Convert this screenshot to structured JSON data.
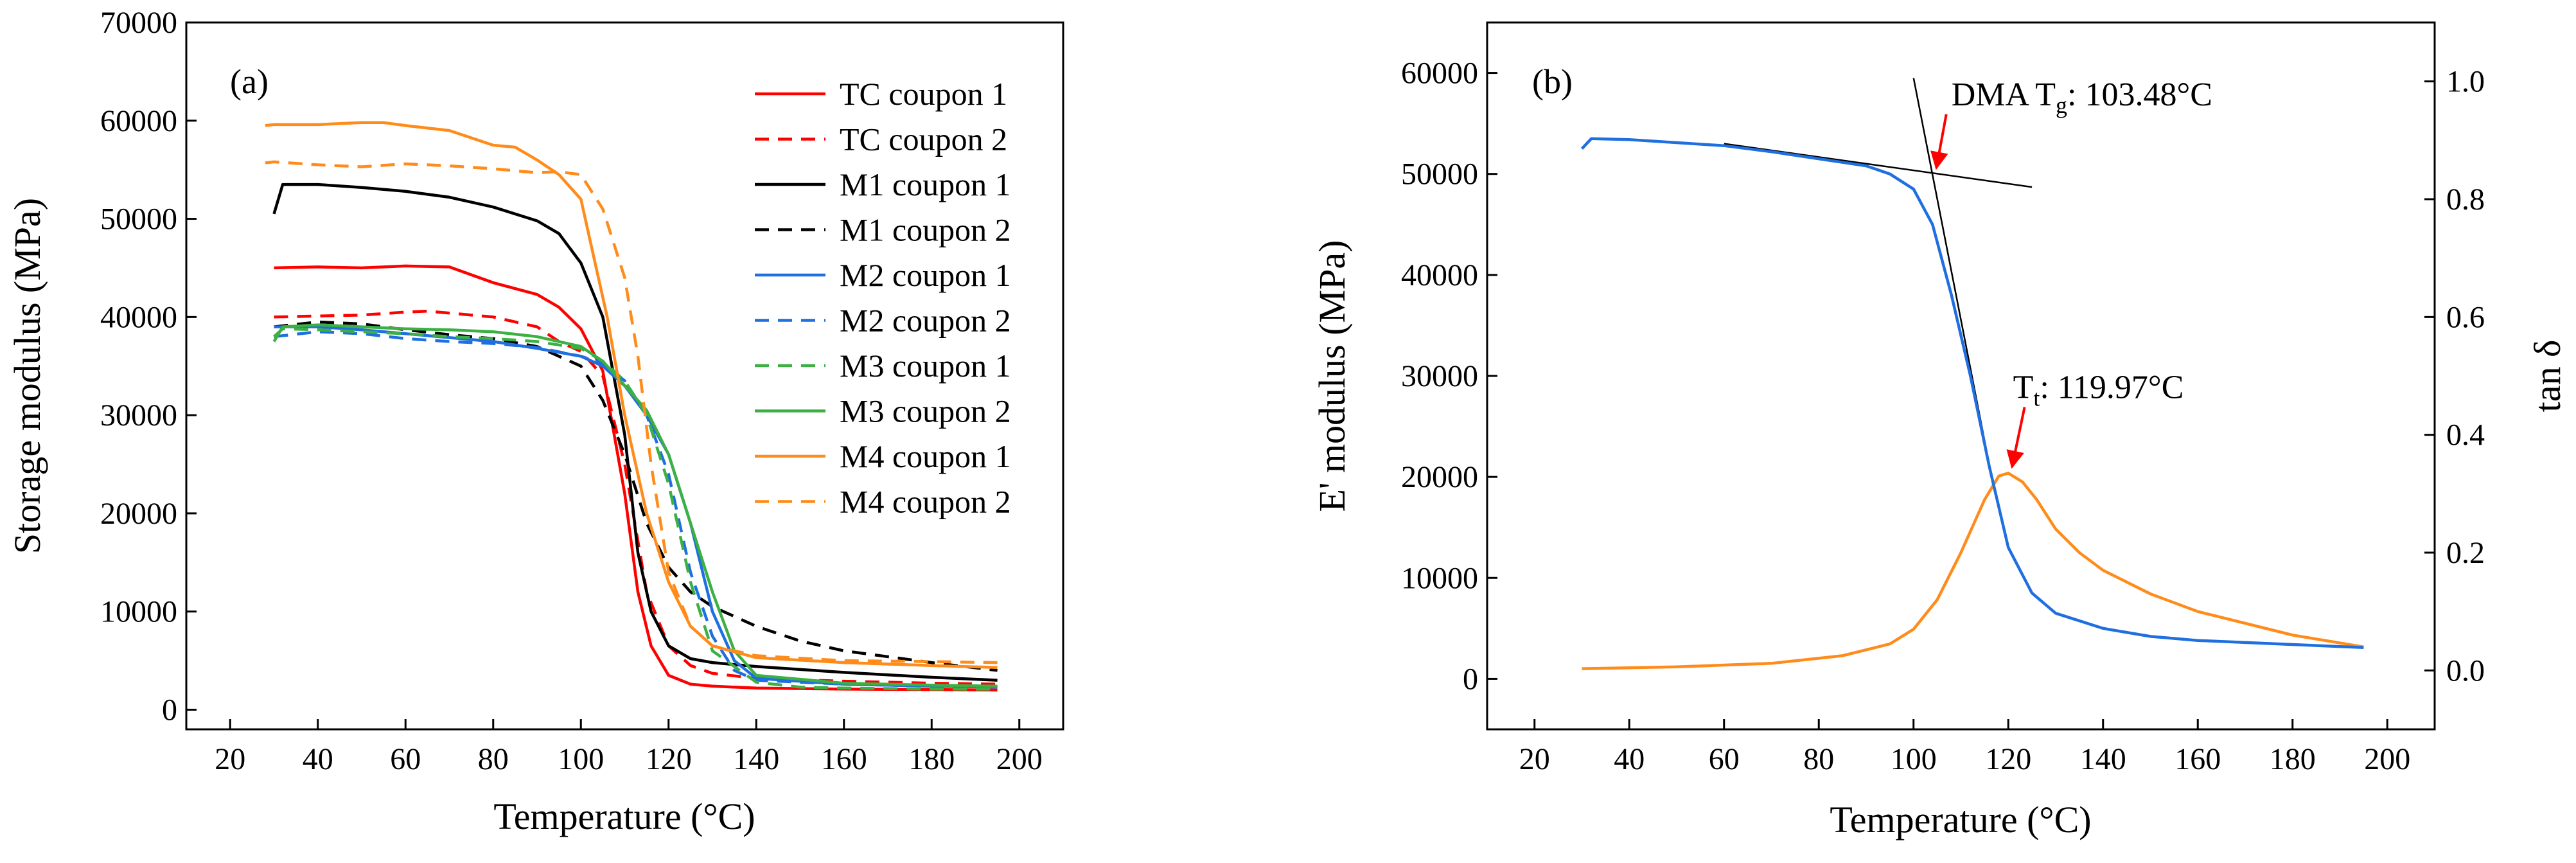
{
  "chart_data": [
    {
      "type": "line",
      "panel_label": "(a)",
      "xlabel": "Temperature (°C)",
      "ylabel": "Storage modulus (MPa)",
      "xlim": [
        10,
        210
      ],
      "ylim": [
        -2000,
        70000
      ],
      "xticks": [
        20,
        40,
        60,
        80,
        100,
        120,
        140,
        160,
        180,
        200
      ],
      "yticks": [
        0,
        10000,
        20000,
        30000,
        40000,
        50000,
        60000,
        70000
      ],
      "legend_position": "top-right",
      "series": [
        {
          "name": "TC coupon 1",
          "color": "#ff0000",
          "dash": "solid",
          "x": [
            30,
            40,
            50,
            60,
            70,
            80,
            90,
            95,
            100,
            105,
            110,
            113,
            116,
            120,
            125,
            130,
            140,
            160,
            180,
            195
          ],
          "y": [
            45000,
            45100,
            45000,
            45200,
            45100,
            43500,
            42300,
            41000,
            38800,
            34500,
            22000,
            12000,
            6500,
            3500,
            2600,
            2400,
            2200,
            2100,
            2050,
            2000
          ]
        },
        {
          "name": "TC coupon 2",
          "color": "#ff0000",
          "dash": "dashed",
          "x": [
            30,
            40,
            50,
            60,
            65,
            80,
            90,
            95,
            100,
            105,
            110,
            115,
            120,
            125,
            130,
            140,
            160,
            180,
            195
          ],
          "y": [
            40000,
            40100,
            40200,
            40500,
            40600,
            40000,
            39000,
            37500,
            36500,
            34000,
            25000,
            12000,
            6500,
            4500,
            3700,
            3200,
            2900,
            2700,
            2600
          ]
        },
        {
          "name": "M1 coupon 1",
          "color": "#000000",
          "dash": "solid",
          "x": [
            30,
            32,
            40,
            50,
            60,
            70,
            80,
            90,
            95,
            100,
            105,
            110,
            113,
            116,
            120,
            125,
            130,
            140,
            160,
            180,
            195
          ],
          "y": [
            50500,
            53500,
            53500,
            53200,
            52800,
            52200,
            51200,
            49800,
            48500,
            45500,
            40000,
            28000,
            16000,
            10000,
            6500,
            5200,
            4800,
            4400,
            3800,
            3300,
            3000
          ]
        },
        {
          "name": "M1 coupon 2",
          "color": "#000000",
          "dash": "dashed",
          "x": [
            30,
            40,
            50,
            60,
            70,
            80,
            90,
            100,
            105,
            110,
            115,
            120,
            125,
            130,
            140,
            150,
            160,
            180,
            195
          ],
          "y": [
            39000,
            39500,
            39300,
            38700,
            38200,
            37800,
            37000,
            35000,
            31500,
            26000,
            19000,
            14500,
            12000,
            10500,
            8500,
            7000,
            6000,
            4800,
            4000
          ]
        },
        {
          "name": "M2 coupon 1",
          "color": "#1f6fe0",
          "dash": "solid",
          "x": [
            30,
            40,
            50,
            60,
            70,
            80,
            90,
            100,
            105,
            110,
            115,
            120,
            125,
            130,
            135,
            140,
            160,
            180,
            195
          ],
          "y": [
            39000,
            39000,
            38700,
            38300,
            37900,
            37500,
            36800,
            36000,
            35000,
            33000,
            30000,
            26000,
            19000,
            10000,
            5000,
            3200,
            2600,
            2400,
            2300
          ]
        },
        {
          "name": "M2 coupon 2",
          "color": "#1f6fe0",
          "dash": "dashed",
          "x": [
            30,
            40,
            50,
            60,
            70,
            80,
            90,
            100,
            105,
            110,
            115,
            120,
            125,
            130,
            135,
            140,
            160,
            180,
            195
          ],
          "y": [
            38000,
            38500,
            38300,
            37800,
            37500,
            37300,
            36900,
            36000,
            35300,
            33500,
            30000,
            24000,
            14000,
            7500,
            4000,
            3000,
            2600,
            2400,
            2300
          ]
        },
        {
          "name": "M3 coupon 1",
          "color": "#3cb043",
          "dash": "dashed",
          "x": [
            30,
            32,
            40,
            50,
            60,
            70,
            80,
            90,
            100,
            105,
            110,
            115,
            120,
            125,
            130,
            140,
            150,
            160,
            180,
            195
          ],
          "y": [
            38000,
            38800,
            38700,
            38500,
            38300,
            38000,
            37800,
            37500,
            36800,
            35500,
            33500,
            30000,
            23000,
            13000,
            6000,
            2800,
            2300,
            2200,
            2100,
            2100
          ]
        },
        {
          "name": "M3 coupon 2",
          "color": "#3cb043",
          "dash": "solid",
          "x": [
            30,
            32,
            40,
            50,
            60,
            70,
            80,
            90,
            100,
            105,
            110,
            115,
            120,
            125,
            130,
            135,
            140,
            160,
            180,
            195
          ],
          "y": [
            37500,
            39000,
            39200,
            39000,
            38800,
            38700,
            38500,
            38000,
            37000,
            35500,
            33000,
            30500,
            26000,
            19000,
            12000,
            6000,
            3500,
            2700,
            2500,
            2400
          ]
        },
        {
          "name": "M4 coupon 1",
          "color": "#ff8c1a",
          "dash": "solid",
          "x": [
            28,
            30,
            40,
            50,
            55,
            60,
            70,
            80,
            85,
            90,
            95,
            100,
            103,
            106,
            110,
            115,
            120,
            125,
            130,
            140,
            160,
            180,
            195
          ],
          "y": [
            59500,
            59600,
            59600,
            59800,
            59800,
            59500,
            59000,
            57500,
            57300,
            56000,
            54500,
            52000,
            46000,
            40000,
            30000,
            20000,
            13000,
            8500,
            6500,
            5300,
            4800,
            4500,
            4300
          ]
        },
        {
          "name": "M4 coupon 2",
          "color": "#ff8c1a",
          "dash": "dashed",
          "x": [
            28,
            30,
            40,
            50,
            60,
            65,
            70,
            80,
            90,
            95,
            100,
            105,
            110,
            113,
            116,
            120,
            125,
            130,
            140,
            160,
            180,
            195
          ],
          "y": [
            55700,
            55800,
            55500,
            55300,
            55600,
            55500,
            55400,
            55100,
            54700,
            54800,
            54500,
            51000,
            44000,
            36000,
            25000,
            14000,
            8500,
            6500,
            5500,
            5000,
            4900,
            4800
          ]
        }
      ]
    },
    {
      "type": "line",
      "panel_label": "(b)",
      "xlabel": "Temperature (°C)",
      "ylabel": "E' modulus (MPa)",
      "ylabel_right": "tan δ",
      "xlim": [
        10,
        210
      ],
      "ylim": [
        -5000,
        65000
      ],
      "ylim_right": [
        -0.1,
        1.1
      ],
      "xticks": [
        20,
        40,
        60,
        80,
        100,
        120,
        140,
        160,
        180,
        200
      ],
      "yticks": [
        0,
        10000,
        20000,
        30000,
        40000,
        50000,
        60000
      ],
      "yticks_right": [
        "0.0",
        "0.2",
        "0.4",
        "0.6",
        "0.8",
        "1.0"
      ],
      "series": [
        {
          "name": "E' modulus",
          "axis": "left",
          "color": "#1f6fe0",
          "dash": "solid",
          "x": [
            30,
            32,
            40,
            50,
            60,
            70,
            80,
            90,
            95,
            100,
            104,
            108,
            112,
            116,
            120,
            125,
            130,
            140,
            150,
            160,
            180,
            195
          ],
          "y": [
            52500,
            53500,
            53400,
            53100,
            52800,
            52200,
            51500,
            50800,
            50000,
            48500,
            45000,
            38000,
            30000,
            21000,
            13000,
            8500,
            6500,
            5000,
            4200,
            3800,
            3400,
            3100
          ]
        },
        {
          "name": "tan δ",
          "axis": "right",
          "color": "#ff8c1a",
          "dash": "solid",
          "x": [
            30,
            50,
            70,
            85,
            95,
            100,
            105,
            110,
            115,
            118,
            120,
            123,
            126,
            130,
            135,
            140,
            150,
            160,
            180,
            195
          ],
          "y": [
            0.003,
            0.006,
            0.012,
            0.025,
            0.045,
            0.07,
            0.12,
            0.2,
            0.29,
            0.33,
            0.335,
            0.32,
            0.29,
            0.24,
            0.2,
            0.17,
            0.13,
            0.1,
            0.06,
            0.04
          ]
        },
        {
          "name": "glassy tangent",
          "axis": "left",
          "color": "#000000",
          "dash": "solid",
          "width": "thin",
          "x": [
            60,
            125
          ],
          "y": [
            53000,
            48700
          ]
        },
        {
          "name": "transition tangent",
          "axis": "left",
          "color": "#000000",
          "dash": "solid",
          "width": "thin",
          "x": [
            100,
            116.5
          ],
          "y": [
            59500,
            20000
          ]
        }
      ],
      "annotations": [
        {
          "name": "dma-tg",
          "base": "DMA T",
          "sub": "g",
          "value": ": 103.48°C",
          "arrow_x": 104,
          "arrow_y": 50200,
          "text_x": 108,
          "text_y": 56800
        },
        {
          "name": "tt",
          "base": "T",
          "sub": "t",
          "value": ": 119.97°C",
          "arrow_x": 119.97,
          "arrow_y": 20600,
          "text_x": 121,
          "text_y": 27800
        }
      ]
    }
  ]
}
